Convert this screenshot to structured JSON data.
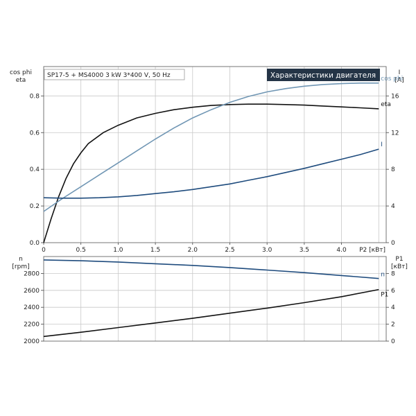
{
  "chart_data": [
    {
      "type": "line",
      "title_box": "SP17-5 + MS4000   3 kW   3*400 V, 50 Hz",
      "banner": "Характеристики двигателя",
      "left_axis_label": [
        "cos phi",
        "eta"
      ],
      "right_axis_label": [
        "I",
        "[A]"
      ],
      "xlabel": "P2 [кВт]",
      "x_ticks": [
        "0",
        "0.5",
        "1.0",
        "1.5",
        "2.0",
        "2.5",
        "3.0",
        "3.5",
        "4.0"
      ],
      "xlim": [
        0,
        4.6
      ],
      "ylim_left": [
        0,
        0.96
      ],
      "y_ticks_left": [
        "0.0",
        "0.2",
        "0.4",
        "0.6",
        "0.8"
      ],
      "ylim_right": [
        0,
        19.2
      ],
      "y_ticks_right": [
        "0",
        "4",
        "8",
        "12",
        "16"
      ],
      "grid": true,
      "series": [
        {
          "name": "eta",
          "axis": "left",
          "color": "#111111",
          "x": [
            0,
            0.1,
            0.2,
            0.3,
            0.4,
            0.5,
            0.6,
            0.8,
            1.0,
            1.25,
            1.5,
            1.75,
            2.0,
            2.25,
            2.5,
            2.75,
            3.0,
            3.25,
            3.5,
            3.75,
            4.0,
            4.25,
            4.5
          ],
          "y": [
            0,
            0.13,
            0.25,
            0.35,
            0.43,
            0.49,
            0.54,
            0.6,
            0.64,
            0.68,
            0.705,
            0.725,
            0.738,
            0.748,
            0.753,
            0.755,
            0.755,
            0.753,
            0.75,
            0.745,
            0.74,
            0.735,
            0.73
          ]
        },
        {
          "name": "cos phi",
          "axis": "left",
          "color": "#7096b4",
          "x": [
            0,
            0.25,
            0.5,
            0.75,
            1.0,
            1.25,
            1.5,
            1.75,
            2.0,
            2.25,
            2.5,
            2.75,
            3.0,
            3.25,
            3.5,
            3.75,
            4.0,
            4.25,
            4.5
          ],
          "y": [
            0.17,
            0.24,
            0.305,
            0.37,
            0.435,
            0.5,
            0.565,
            0.625,
            0.68,
            0.725,
            0.765,
            0.797,
            0.822,
            0.84,
            0.853,
            0.862,
            0.867,
            0.87,
            0.87
          ]
        },
        {
          "name": "I",
          "axis": "right",
          "color": "#1e4b7d",
          "x": [
            0,
            0.25,
            0.5,
            0.75,
            1.0,
            1.25,
            1.5,
            1.75,
            2.0,
            2.25,
            2.5,
            2.75,
            3.0,
            3.25,
            3.5,
            3.75,
            4.0,
            4.25,
            4.5
          ],
          "y": [
            4.9,
            4.85,
            4.85,
            4.9,
            5.0,
            5.15,
            5.35,
            5.55,
            5.8,
            6.1,
            6.4,
            6.8,
            7.2,
            7.65,
            8.1,
            8.6,
            9.1,
            9.6,
            10.2
          ]
        }
      ]
    },
    {
      "type": "line",
      "left_axis_label": [
        "n",
        "[rpm]"
      ],
      "right_axis_label": [
        "P1",
        "[кВт]"
      ],
      "xlim": [
        0,
        4.6
      ],
      "ylim_left": [
        2000,
        3000
      ],
      "y_ticks_left": [
        "2000",
        "2200",
        "2400",
        "2600",
        "2800"
      ],
      "ylim_right": [
        0,
        10
      ],
      "y_ticks_right": [
        "0",
        "2",
        "4",
        "6",
        "8"
      ],
      "grid": true,
      "series": [
        {
          "name": "n",
          "axis": "left",
          "color": "#1e4b7d",
          "x": [
            0,
            0.5,
            1.0,
            1.5,
            2.0,
            2.5,
            3.0,
            3.5,
            4.0,
            4.5
          ],
          "y": [
            2960,
            2950,
            2935,
            2915,
            2895,
            2870,
            2840,
            2810,
            2775,
            2740
          ]
        },
        {
          "name": "P1",
          "axis": "right",
          "color": "#111111",
          "x": [
            0,
            0.5,
            1.0,
            1.5,
            2.0,
            2.5,
            3.0,
            3.5,
            4.0,
            4.5
          ],
          "y": [
            0.55,
            1.05,
            1.6,
            2.15,
            2.7,
            3.3,
            3.9,
            4.55,
            5.25,
            6.1
          ]
        }
      ]
    }
  ]
}
